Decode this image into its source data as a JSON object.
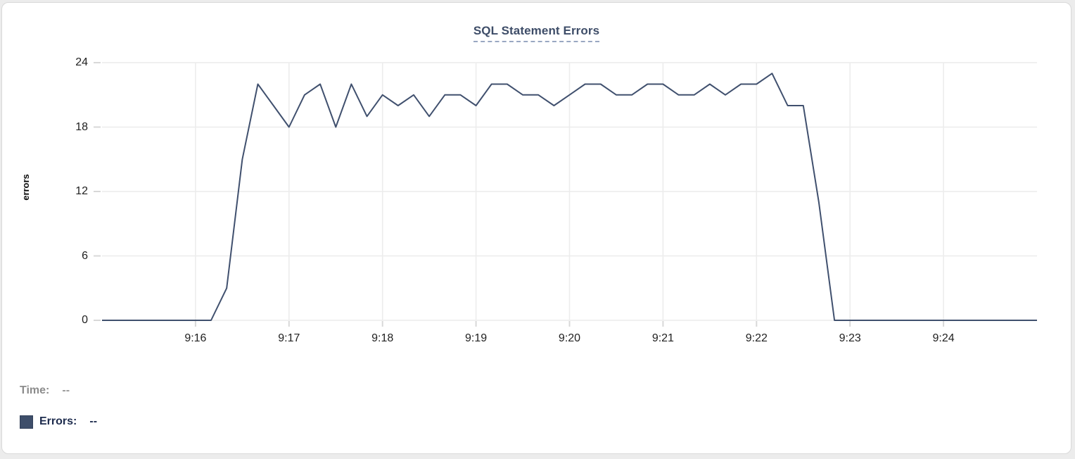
{
  "accent_colors": {
    "series_line": "#40506e",
    "legend_swatch": "#3e4e6a",
    "title_text": "#3e4d68",
    "grid_line": "#ececec",
    "tick_mark": "#d8d8d8"
  },
  "chart_data": {
    "type": "line",
    "title": "SQL Statement Errors",
    "xlabel": "",
    "ylabel": "errors",
    "ylim": [
      0,
      24
    ],
    "yticks": [
      0,
      6,
      12,
      18,
      24
    ],
    "xticks": [
      "9:16",
      "9:17",
      "9:18",
      "9:19",
      "9:20",
      "9:21",
      "9:22",
      "9:23",
      "9:24"
    ],
    "x_range": [
      "9:15:00",
      "9:25:00"
    ],
    "grid": true,
    "legend_position": "bottom-left",
    "x": [
      "9:15:00",
      "9:15:10",
      "9:15:20",
      "9:15:30",
      "9:15:40",
      "9:15:50",
      "9:16:00",
      "9:16:10",
      "9:16:20",
      "9:16:30",
      "9:16:40",
      "9:16:50",
      "9:17:00",
      "9:17:10",
      "9:17:20",
      "9:17:30",
      "9:17:40",
      "9:17:50",
      "9:18:00",
      "9:18:10",
      "9:18:20",
      "9:18:30",
      "9:18:40",
      "9:18:50",
      "9:19:00",
      "9:19:10",
      "9:19:20",
      "9:19:30",
      "9:19:40",
      "9:19:50",
      "9:20:00",
      "9:20:10",
      "9:20:20",
      "9:20:30",
      "9:20:40",
      "9:20:50",
      "9:21:00",
      "9:21:10",
      "9:21:20",
      "9:21:30",
      "9:21:40",
      "9:21:50",
      "9:22:00",
      "9:22:10",
      "9:22:20",
      "9:22:30",
      "9:22:40",
      "9:22:50",
      "9:23:00",
      "9:23:10",
      "9:23:20",
      "9:23:30",
      "9:23:40",
      "9:23:50",
      "9:24:00",
      "9:24:10",
      "9:24:20",
      "9:24:30",
      "9:24:40",
      "9:24:50",
      "9:25:00"
    ],
    "series": [
      {
        "name": "Errors",
        "color": "#40506e",
        "values": [
          0,
          0,
          0,
          0,
          0,
          0,
          0,
          0,
          3,
          15,
          22,
          20,
          18,
          21,
          22,
          18,
          22,
          19,
          21,
          20,
          21,
          19,
          21,
          21,
          20,
          22,
          22,
          21,
          21,
          20,
          21,
          22,
          22,
          21,
          21,
          22,
          22,
          21,
          21,
          22,
          21,
          22,
          22,
          23,
          20,
          20,
          11,
          0,
          0,
          0,
          0,
          0,
          0,
          0,
          0,
          0,
          0,
          0,
          0,
          0,
          0
        ]
      }
    ]
  },
  "footer": {
    "time_label": "Time:",
    "time_value": "--",
    "errors_label": "Errors:",
    "errors_value": "--"
  }
}
